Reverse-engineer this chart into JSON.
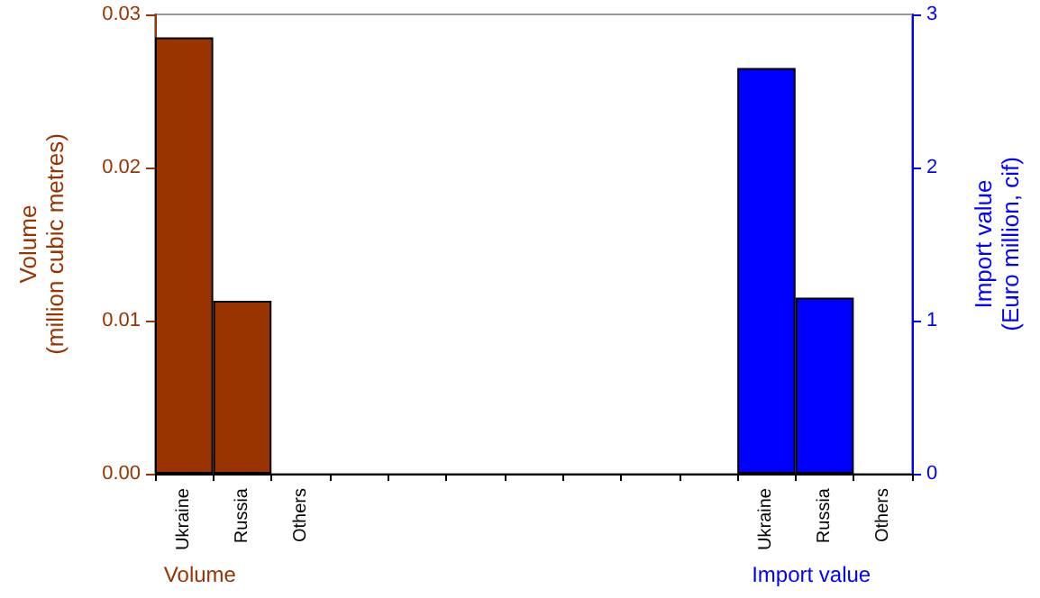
{
  "chart_data": {
    "type": "bar",
    "categories": [
      "Ukraine",
      "Russia",
      "Others",
      null,
      null,
      null,
      null,
      null,
      null,
      null,
      "Ukraine",
      "Russia",
      "Others"
    ],
    "series": [
      {
        "name": "Volume",
        "color": "#993300",
        "values": [
          0.0285,
          0.0113,
          0,
          null,
          null,
          null,
          null,
          null,
          null,
          null,
          null,
          null,
          null
        ]
      },
      {
        "name": "Import value",
        "color": "#0000ff",
        "axis": "y2",
        "values": [
          null,
          null,
          null,
          null,
          null,
          null,
          null,
          null,
          null,
          null,
          2.65,
          1.15,
          0
        ]
      }
    ],
    "ylabel": "Volume (million cubic metres)",
    "y2label": "Import value (Euro million, cif)",
    "ylim": [
      0,
      0.03
    ],
    "yticks": [
      {
        "value": 0,
        "label": "0.00"
      },
      {
        "value": 0.01,
        "label": "0.01"
      },
      {
        "value": 0.02,
        "label": "0.02"
      },
      {
        "value": 0.03,
        "label": "0.03"
      }
    ],
    "y2lim": [
      0,
      3
    ],
    "y2ticks": [
      0,
      1,
      2,
      3
    ],
    "grid": false,
    "legend": "bottom"
  }
}
